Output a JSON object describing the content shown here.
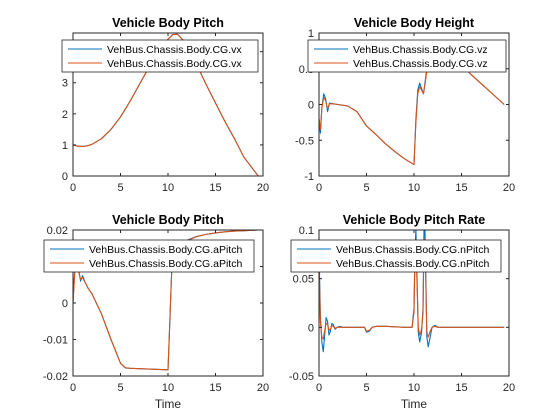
{
  "figure": {
    "background": "#ffffff"
  },
  "chart_data": [
    {
      "type": "line",
      "title": "Vehicle Body Pitch",
      "xlabel": "",
      "ylabel": "",
      "xlim": [
        0,
        20
      ],
      "ylim": [
        0,
        4.6
      ],
      "xticks": [
        0,
        5,
        10,
        15,
        20
      ],
      "yticks": [
        0,
        1,
        2,
        3,
        4
      ],
      "legend_location": "top",
      "series": [
        {
          "name": "VehBus.Chassis.Body.CG.vx",
          "color": "#0072BD",
          "x": [
            0,
            0.5,
            1,
            1.5,
            2,
            3,
            4,
            5,
            6,
            7,
            8,
            9,
            10,
            10.5,
            11,
            11.5,
            12,
            13,
            14,
            15,
            16,
            17,
            18,
            19.5
          ],
          "y": [
            1.0,
            0.96,
            0.95,
            0.97,
            1.02,
            1.2,
            1.5,
            1.9,
            2.4,
            2.95,
            3.5,
            4.0,
            4.4,
            4.55,
            4.56,
            4.4,
            4.2,
            3.6,
            2.95,
            2.35,
            1.75,
            1.2,
            0.6,
            0.0
          ]
        },
        {
          "name": "VehBus.Chassis.Body.CG.vx",
          "color": "#D95319",
          "x": [
            0,
            0.5,
            1,
            1.5,
            2,
            3,
            4,
            5,
            6,
            7,
            8,
            9,
            10,
            10.5,
            11,
            11.5,
            12,
            13,
            14,
            15,
            16,
            17,
            18,
            19.5
          ],
          "y": [
            1.0,
            0.96,
            0.95,
            0.97,
            1.02,
            1.2,
            1.5,
            1.9,
            2.4,
            2.95,
            3.5,
            4.0,
            4.4,
            4.55,
            4.56,
            4.4,
            4.2,
            3.6,
            2.95,
            2.35,
            1.75,
            1.2,
            0.6,
            0.0
          ]
        }
      ]
    },
    {
      "type": "line",
      "title": "Vehicle Body Height",
      "xlabel": "",
      "ylabel": "",
      "xlim": [
        0,
        20
      ],
      "ylim": [
        -1,
        1
      ],
      "xticks": [
        0,
        5,
        10,
        15,
        20
      ],
      "yticks": [
        -1,
        -0.5,
        0,
        0.5,
        1
      ],
      "legend_location": "top",
      "series": [
        {
          "name": "VehBus.Chassis.Body.CG.vz",
          "color": "#0072BD",
          "x": [
            0,
            0.15,
            0.3,
            0.5,
            0.7,
            0.9,
            1.1,
            1.5,
            2,
            3,
            4,
            5,
            6,
            7,
            8,
            9,
            10,
            10.2,
            10.4,
            10.6,
            10.8,
            11.0,
            11.2,
            11.4,
            11.6,
            12,
            13,
            14,
            15,
            16,
            17,
            18,
            19.5
          ],
          "y": [
            -0.2,
            -0.4,
            -0.05,
            0.15,
            0.08,
            -0.1,
            0.02,
            0.01,
            0.0,
            -0.02,
            -0.1,
            -0.3,
            -0.42,
            -0.55,
            -0.66,
            -0.76,
            -0.84,
            -0.2,
            0.2,
            0.3,
            0.22,
            0.15,
            0.35,
            0.55,
            0.65,
            0.8,
            0.82,
            0.7,
            0.56,
            0.42,
            0.3,
            0.18,
            0.0
          ]
        },
        {
          "name": "VehBus.Chassis.Body.CG.vz",
          "color": "#D95319",
          "x": [
            0,
            0.15,
            0.3,
            0.5,
            0.7,
            0.9,
            1.1,
            1.5,
            2,
            3,
            4,
            5,
            6,
            7,
            8,
            9,
            10,
            10.2,
            10.4,
            10.6,
            10.8,
            11.0,
            11.2,
            11.4,
            11.6,
            12,
            13,
            14,
            15,
            16,
            17,
            18,
            19.5
          ],
          "y": [
            -0.2,
            -0.35,
            -0.05,
            0.1,
            0.05,
            -0.06,
            0.01,
            0.01,
            0.0,
            -0.02,
            -0.1,
            -0.3,
            -0.42,
            -0.55,
            -0.66,
            -0.76,
            -0.84,
            -0.25,
            0.15,
            0.25,
            0.2,
            0.15,
            0.32,
            0.52,
            0.63,
            0.8,
            0.82,
            0.7,
            0.56,
            0.42,
            0.3,
            0.18,
            0.0
          ]
        }
      ]
    },
    {
      "type": "line",
      "title": "Vehicle Body Pitch",
      "xlabel": "Time",
      "ylabel": "",
      "xlim": [
        0,
        20
      ],
      "ylim": [
        -0.02,
        0.02
      ],
      "xticks": [
        0,
        5,
        10,
        15,
        20
      ],
      "yticks": [
        -0.02,
        -0.01,
        0,
        0.01,
        0.02
      ],
      "legend_location": "top",
      "series": [
        {
          "name": "VehBus.Chassis.Body.CG.aPitch",
          "color": "#0072BD",
          "x": [
            0,
            0.2,
            0.4,
            0.6,
            0.8,
            1.0,
            1.3,
            1.6,
            2,
            3,
            4,
            5,
            5.5,
            6,
            8,
            10,
            10.2,
            10.4,
            10.6,
            10.8,
            11.0,
            11.2,
            11.4,
            11.7,
            12,
            13,
            14,
            15,
            16,
            17,
            18,
            19.5
          ],
          "y": [
            0.0,
            0.01,
            0.0125,
            0.009,
            0.006,
            0.0075,
            0.0055,
            0.004,
            0.0025,
            -0.003,
            -0.01,
            -0.0165,
            -0.0178,
            -0.0179,
            -0.0181,
            -0.0183,
            -0.005,
            0.01,
            0.014,
            0.011,
            0.01,
            0.012,
            0.014,
            0.016,
            0.0172,
            0.0182,
            0.0188,
            0.0192,
            0.0195,
            0.0197,
            0.0198,
            0.02
          ]
        },
        {
          "name": "VehBus.Chassis.Body.CG.aPitch",
          "color": "#D95319",
          "x": [
            0,
            0.2,
            0.4,
            0.6,
            0.8,
            1.0,
            1.3,
            1.6,
            2,
            3,
            4,
            5,
            5.5,
            6,
            8,
            10,
            10.2,
            10.4,
            10.6,
            10.8,
            11.0,
            11.2,
            11.4,
            11.7,
            12,
            13,
            14,
            15,
            16,
            17,
            18,
            19.5
          ],
          "y": [
            0.0,
            0.009,
            0.0115,
            0.0085,
            0.0065,
            0.007,
            0.0055,
            0.004,
            0.0025,
            -0.003,
            -0.01,
            -0.0165,
            -0.0177,
            -0.0179,
            -0.0181,
            -0.0183,
            -0.004,
            0.009,
            0.0125,
            0.011,
            0.0105,
            0.0118,
            0.0138,
            0.0158,
            0.017,
            0.0182,
            0.0188,
            0.0192,
            0.0195,
            0.0197,
            0.0198,
            0.02
          ]
        }
      ]
    },
    {
      "type": "line",
      "title": "Vehicle Body Pitch Rate",
      "xlabel": "Time",
      "ylabel": "",
      "xlim": [
        0,
        20
      ],
      "ylim": [
        -0.05,
        0.1
      ],
      "xticks": [
        0,
        5,
        10,
        15,
        20
      ],
      "yticks": [
        -0.05,
        0,
        0.05,
        0.1
      ],
      "legend_location": "top",
      "series": [
        {
          "name": "VehBus.Chassis.Body.CG.nPitch",
          "color": "#0072BD",
          "x": [
            0,
            0.15,
            0.3,
            0.45,
            0.6,
            0.75,
            0.9,
            1.05,
            1.2,
            1.35,
            1.5,
            1.7,
            1.9,
            2.2,
            2.5,
            3,
            4,
            4.8,
            5.0,
            5.3,
            5.6,
            6,
            7,
            8,
            9,
            9.8,
            10.0,
            10.1,
            10.2,
            10.3,
            10.45,
            10.6,
            10.8,
            10.95,
            11.05,
            11.15,
            11.25,
            11.35,
            11.5,
            11.7,
            11.9,
            12.2,
            12.5,
            13,
            14,
            15,
            16,
            17,
            18,
            19,
            19.5
          ],
          "y": [
            0.08,
            0.01,
            -0.015,
            -0.025,
            -0.008,
            0.01,
            0.006,
            -0.008,
            -0.004,
            0.004,
            0.003,
            -0.002,
            0.0,
            0.001,
            0.0,
            0.0,
            0.0,
            0.0,
            -0.005,
            -0.004,
            0.0,
            0.001,
            0.001,
            0.0005,
            0.0,
            0.0,
            0.02,
            0.08,
            0.1,
            0.06,
            -0.005,
            -0.015,
            -0.005,
            0.02,
            0.1,
            0.1,
            0.05,
            -0.01,
            -0.02,
            -0.01,
            0.0,
            0.002,
            0.0,
            0.0,
            0.0,
            0.0,
            0.0,
            0.0,
            0.0,
            0.0,
            0.0
          ]
        },
        {
          "name": "VehBus.Chassis.Body.CG.nPitch",
          "color": "#D95319",
          "x": [
            0,
            0.15,
            0.3,
            0.45,
            0.6,
            0.75,
            0.9,
            1.05,
            1.2,
            1.35,
            1.5,
            1.7,
            1.9,
            2.2,
            2.5,
            3,
            4,
            4.8,
            5.0,
            5.3,
            5.6,
            6,
            7,
            8,
            9,
            9.8,
            10.0,
            10.1,
            10.2,
            10.3,
            10.45,
            10.6,
            10.8,
            10.95,
            11.05,
            11.15,
            11.25,
            11.35,
            11.5,
            11.7,
            11.9,
            12.2,
            12.5,
            13,
            14,
            15,
            16,
            17,
            18,
            19,
            19.5
          ],
          "y": [
            0.07,
            0.005,
            -0.01,
            -0.012,
            -0.003,
            0.004,
            0.003,
            -0.003,
            -0.002,
            0.002,
            0.001,
            -0.001,
            0.0,
            0.0,
            0.0,
            0.0,
            0.0,
            0.0,
            -0.004,
            -0.003,
            0.0,
            0.001,
            0.001,
            0.0005,
            0.0,
            0.0,
            0.015,
            0.07,
            0.09,
            0.05,
            0.0,
            -0.008,
            -0.002,
            0.015,
            0.09,
            0.09,
            0.04,
            -0.005,
            -0.01,
            -0.004,
            0.0,
            0.001,
            0.0,
            0.0,
            0.0,
            0.0,
            0.0,
            0.0,
            0.0,
            0.0,
            0.0
          ]
        }
      ]
    }
  ]
}
